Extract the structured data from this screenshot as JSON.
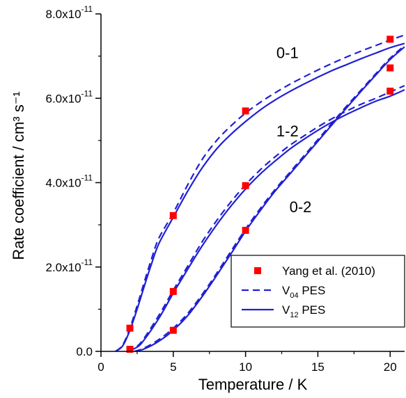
{
  "chart_data": {
    "type": "line",
    "xlabel": "Temperature / K",
    "ylabel": "Rate coefficient / cm³ s⁻¹",
    "xlim": [
      0,
      21
    ],
    "ylim": [
      0,
      8e-11
    ],
    "x_ticks": [
      0,
      5,
      10,
      15,
      20
    ],
    "x_tick_labels": [
      "0",
      "5",
      "10",
      "15",
      "20"
    ],
    "y_ticks": [
      0,
      2e-11,
      4e-11,
      6e-11,
      8e-11
    ],
    "y_tick_labels": [
      {
        "mantissa": "0.0",
        "exponent": ""
      },
      {
        "mantissa": "2.0x10",
        "exponent": "-11"
      },
      {
        "mantissa": "4.0x10",
        "exponent": "-11"
      },
      {
        "mantissa": "6.0x10",
        "exponent": "-11"
      },
      {
        "mantissa": "8.0x10",
        "exponent": "-11"
      }
    ],
    "grid": false,
    "legend_position": "bottom-right",
    "legend": [
      {
        "label": "Yang et al. (2010)",
        "style": "square-marker",
        "color": "#ff0000"
      },
      {
        "label_main": "V",
        "label_sub": "04",
        "label_rest": " PES",
        "style": "dashed",
        "color": "#1f1fd6"
      },
      {
        "label_main": "V",
        "label_sub": "12",
        "label_rest": " PES",
        "style": "solid",
        "color": "#1f1fd6"
      }
    ],
    "curve_labels": [
      {
        "text": "0-1",
        "x": 12.9,
        "y": 6.95e-11
      },
      {
        "text": "1-2",
        "x": 12.9,
        "y": 5.1e-11
      },
      {
        "text": "0-2",
        "x": 13.8,
        "y": 3.3e-11
      }
    ],
    "series": [
      {
        "transition": "0-1",
        "style": "dashed",
        "color": "#1f1fd6",
        "x": [
          1,
          1.5,
          2,
          2.5,
          3,
          3.5,
          4,
          5,
          6,
          7,
          8,
          9,
          10,
          11,
          12,
          13,
          14,
          15,
          16,
          17,
          18,
          19,
          20,
          21
        ],
        "values": [
          0,
          1.5e-12,
          5.5e-12,
          1.08e-11,
          1.65e-11,
          2.2e-11,
          2.68e-11,
          3.28e-11,
          3.95e-11,
          4.55e-11,
          5e-11,
          5.35e-11,
          5.65e-11,
          5.9e-11,
          6.12e-11,
          6.32e-11,
          6.5e-11,
          6.67e-11,
          6.83e-11,
          6.98e-11,
          7.12e-11,
          7.25e-11,
          7.38e-11,
          7.5e-11
        ]
      },
      {
        "transition": "0-1",
        "style": "solid",
        "color": "#1f1fd6",
        "x": [
          1,
          1.5,
          2,
          2.5,
          3,
          3.5,
          4,
          5,
          6,
          7,
          8,
          9,
          10,
          11,
          12,
          13,
          14,
          15,
          16,
          17,
          18,
          19,
          20,
          21
        ],
        "values": [
          0,
          1.3e-12,
          5e-12,
          1e-11,
          1.55e-11,
          2.08e-11,
          2.55e-11,
          3.18e-11,
          3.8e-11,
          4.35e-11,
          4.8e-11,
          5.15e-11,
          5.45e-11,
          5.72e-11,
          5.95e-11,
          6.15e-11,
          6.33e-11,
          6.5e-11,
          6.66e-11,
          6.8e-11,
          6.94e-11,
          7.07e-11,
          7.2e-11,
          7.3e-11
        ]
      },
      {
        "transition": "1-2",
        "style": "dashed",
        "color": "#1f1fd6",
        "x": [
          1.8,
          2.5,
          3,
          4,
          5,
          6,
          7,
          8,
          9,
          10,
          11,
          12,
          13,
          14,
          15,
          16,
          17,
          18,
          19,
          20,
          21
        ],
        "values": [
          0,
          1.2e-12,
          3.2e-12,
          8.5e-12,
          1.45e-11,
          2.02e-11,
          2.6e-11,
          3.1e-11,
          3.55e-11,
          3.95e-11,
          4.3e-11,
          4.6e-11,
          4.87e-11,
          5.1e-11,
          5.32e-11,
          5.52e-11,
          5.7e-11,
          5.86e-11,
          6e-11,
          6.15e-11,
          6.3e-11
        ]
      },
      {
        "transition": "1-2",
        "style": "solid",
        "color": "#1f1fd6",
        "x": [
          1.8,
          2.5,
          3,
          4,
          5,
          6,
          7,
          8,
          9,
          10,
          11,
          12,
          13,
          14,
          15,
          16,
          17,
          18,
          19,
          20,
          21
        ],
        "values": [
          0,
          1e-12,
          2.8e-12,
          7.8e-12,
          1.38e-11,
          1.95e-11,
          2.5e-11,
          3e-11,
          3.45e-11,
          3.85e-11,
          4.2e-11,
          4.5e-11,
          4.78e-11,
          5.02e-11,
          5.24e-11,
          5.44e-11,
          5.62e-11,
          5.78e-11,
          5.93e-11,
          6.05e-11,
          6.2e-11
        ]
      },
      {
        "transition": "0-2",
        "style": "dashed",
        "color": "#1f1fd6",
        "x": [
          2.3,
          3,
          4,
          5,
          6,
          7,
          8,
          9,
          10,
          11,
          12,
          13,
          14,
          15,
          16,
          17,
          18,
          19,
          20,
          21
        ],
        "values": [
          0,
          8e-13,
          2.8e-12,
          5.5e-12,
          9e-12,
          1.35e-11,
          1.85e-11,
          2.38e-11,
          2.9e-11,
          3.38e-11,
          3.82e-11,
          4.22e-11,
          4.62e-11,
          5.02e-11,
          5.42e-11,
          5.82e-11,
          6.2e-11,
          6.58e-11,
          6.95e-11,
          7.25e-11
        ]
      },
      {
        "transition": "0-2",
        "style": "solid",
        "color": "#1f1fd6",
        "x": [
          2.3,
          3,
          4,
          5,
          6,
          7,
          8,
          9,
          10,
          11,
          12,
          13,
          14,
          15,
          16,
          17,
          18,
          19,
          20,
          21
        ],
        "values": [
          0,
          6e-13,
          2.4e-12,
          5e-12,
          8.5e-12,
          1.3e-11,
          1.8e-11,
          2.32e-11,
          2.85e-11,
          3.33e-11,
          3.78e-11,
          4.18e-11,
          4.58e-11,
          4.98e-11,
          5.38e-11,
          5.78e-11,
          6.17e-11,
          6.55e-11,
          6.92e-11,
          7.22e-11
        ]
      }
    ],
    "markers": {
      "name": "Yang et al. (2010)",
      "color": "#ff0000",
      "points": [
        {
          "x": 2,
          "y": 5.5e-12
        },
        {
          "x": 2,
          "y": 5e-13
        },
        {
          "x": 5,
          "y": 3.22e-11
        },
        {
          "x": 5,
          "y": 1.42e-11
        },
        {
          "x": 5,
          "y": 5e-12
        },
        {
          "x": 10,
          "y": 5.7e-11
        },
        {
          "x": 10,
          "y": 3.93e-11
        },
        {
          "x": 10,
          "y": 2.87e-11
        },
        {
          "x": 20,
          "y": 7.4e-11
        },
        {
          "x": 20,
          "y": 6.72e-11
        },
        {
          "x": 20,
          "y": 6.17e-11
        }
      ]
    }
  }
}
